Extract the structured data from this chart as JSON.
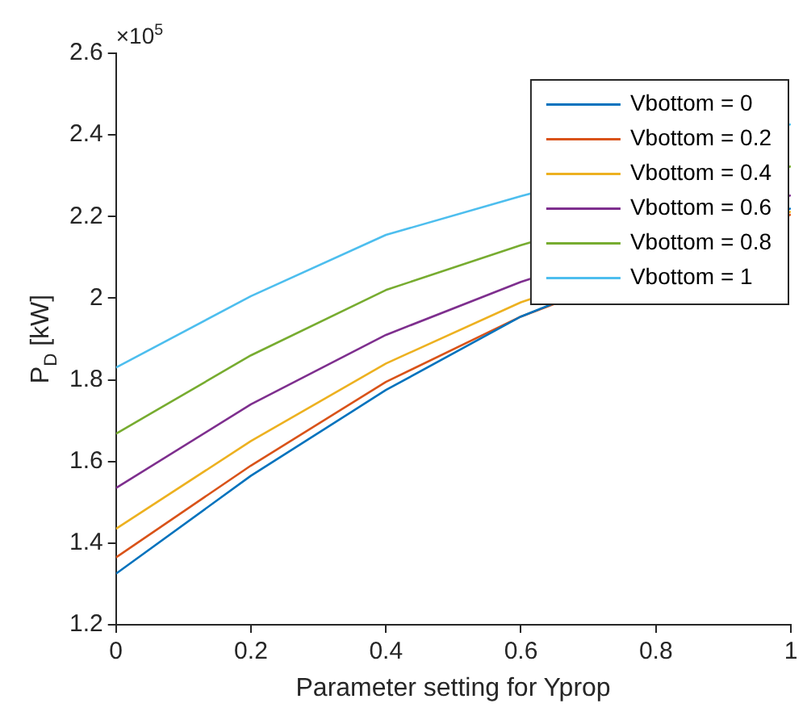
{
  "chart_data": {
    "type": "line",
    "xlabel": "Parameter setting for Yprop",
    "ylabel": "P$_{D}$ [kW]",
    "annotations": [
      "×10$^{5}$"
    ],
    "x": [
      0,
      0.2,
      0.4,
      0.6,
      0.8,
      1
    ],
    "series": [
      {
        "name": "Vbottom = 0",
        "color": "#0072bd",
        "values": [
          1.325,
          1.565,
          1.775,
          1.955,
          null,
          2.22
        ]
      },
      {
        "name": "Vbottom = 0.2",
        "color": "#d95319",
        "values": [
          1.365,
          1.59,
          1.795,
          1.955,
          null,
          2.205
        ]
      },
      {
        "name": "Vbottom = 0.4",
        "color": "#edb120",
        "values": [
          1.435,
          1.65,
          1.84,
          1.99,
          null,
          2.212
        ]
      },
      {
        "name": "Vbottom = 0.6",
        "color": "#7e2f8e",
        "values": [
          1.535,
          1.74,
          1.91,
          2.04,
          null,
          2.252
        ]
      },
      {
        "name": "Vbottom = 0.8",
        "color": "#77ac30",
        "values": [
          1.668,
          1.86,
          2.02,
          2.13,
          null,
          2.323
        ]
      },
      {
        "name": "Vbottom = 1",
        "color": "#4dbeee",
        "values": [
          1.83,
          2.005,
          2.155,
          2.25,
          null,
          2.426
        ]
      }
    ],
    "xlim": [
      0,
      1
    ],
    "xticks": [
      0,
      0.2,
      0.4,
      0.6,
      0.8,
      1
    ],
    "ylim": [
      1.2,
      2.6
    ],
    "yticks": [
      1.2,
      1.4,
      1.6,
      1.8,
      2,
      2.2,
      2.4,
      2.6
    ],
    "grid": false,
    "legend": "top right",
    "marker": "none",
    "line_style": "solid"
  }
}
